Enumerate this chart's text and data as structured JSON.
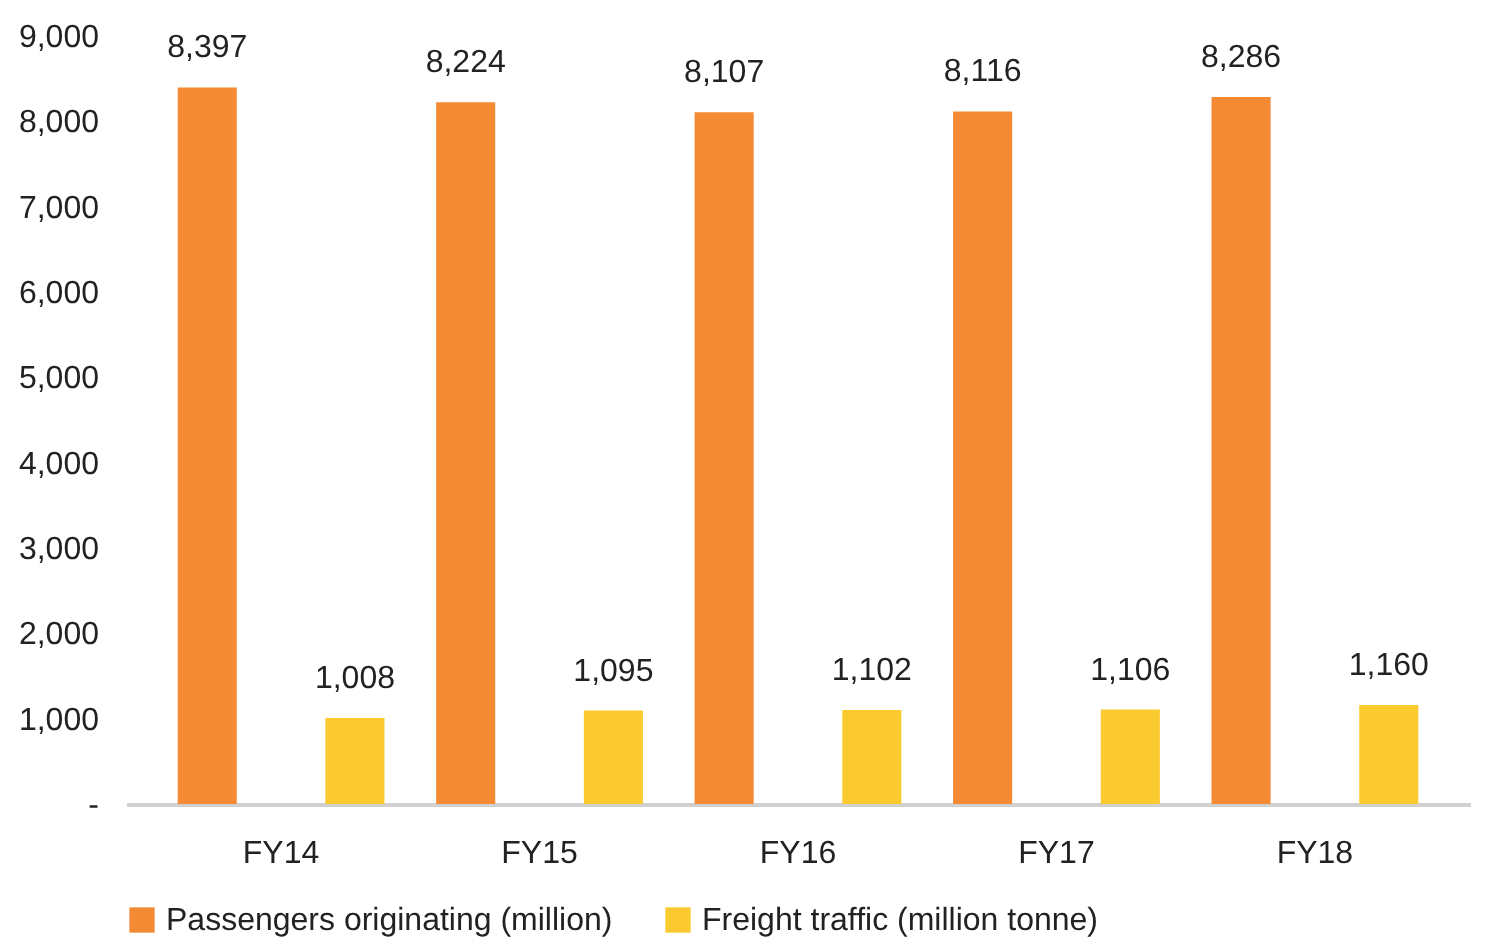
{
  "chart_data": {
    "type": "bar",
    "categories": [
      "FY14",
      "FY15",
      "FY16",
      "FY17",
      "FY18"
    ],
    "series": [
      {
        "name": "Passengers originating (million)",
        "color": "#f58a35",
        "values": [
          8397,
          8224,
          8107,
          8116,
          8286
        ],
        "value_labels": [
          "8,397",
          "8,224",
          "8,107",
          "8,116",
          "8,286"
        ]
      },
      {
        "name": "Freight traffic (million tonne)",
        "color": "#fbca2e",
        "values": [
          1008,
          1095,
          1102,
          1106,
          1160
        ],
        "value_labels": [
          "1,008",
          "1,095",
          "1,102",
          "1,106",
          "1,160"
        ]
      }
    ],
    "ylim": [
      0,
      9000
    ],
    "yticks": [
      {
        "value": 0,
        "label": "-"
      },
      {
        "value": 1000,
        "label": "1,000"
      },
      {
        "value": 2000,
        "label": "2,000"
      },
      {
        "value": 3000,
        "label": "3,000"
      },
      {
        "value": 4000,
        "label": "4,000"
      },
      {
        "value": 5000,
        "label": "5,000"
      },
      {
        "value": 6000,
        "label": "6,000"
      },
      {
        "value": 7000,
        "label": "7,000"
      },
      {
        "value": 8000,
        "label": "8,000"
      },
      {
        "value": 9000,
        "label": "9,000"
      }
    ],
    "grid": false,
    "legend": "bottom"
  }
}
